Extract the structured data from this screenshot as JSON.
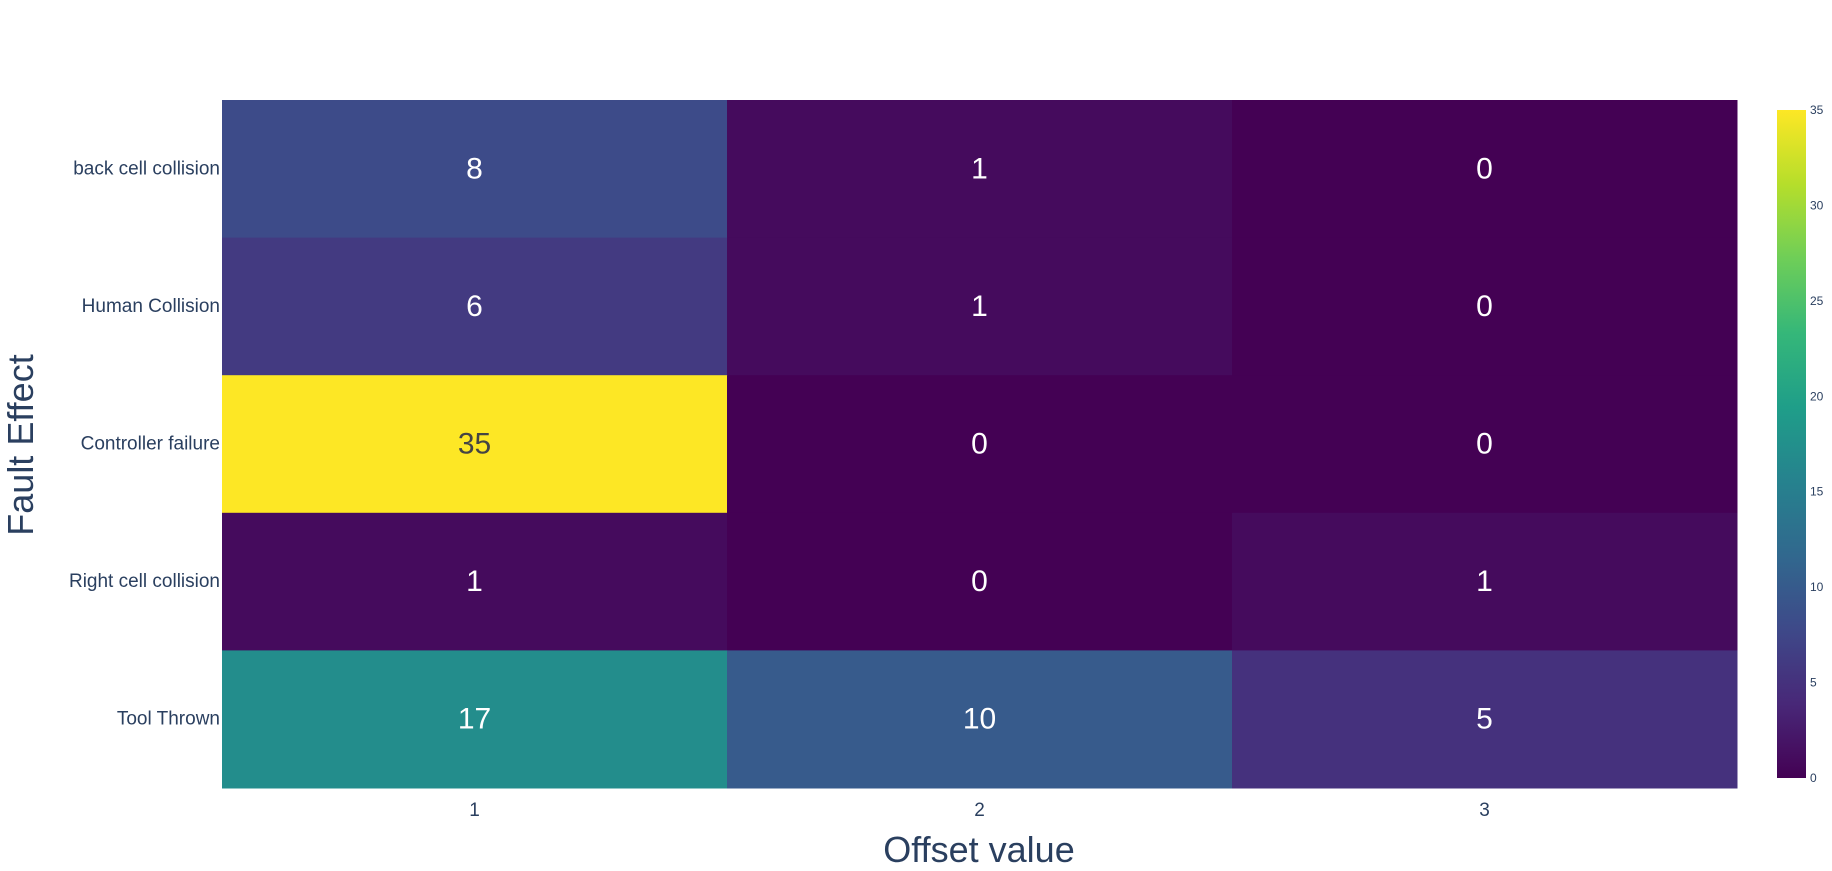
{
  "chart_data": {
    "type": "heatmap",
    "xlabel": "Offset value",
    "ylabel": "Fault Effect",
    "x": [
      "1",
      "2",
      "3"
    ],
    "y": [
      "back cell collision",
      "Human Collision",
      "Controller failure",
      "Right cell collision",
      "Tool Thrown"
    ],
    "z": [
      [
        8,
        1,
        0
      ],
      [
        6,
        1,
        0
      ],
      [
        35,
        0,
        0
      ],
      [
        1,
        0,
        1
      ],
      [
        17,
        10,
        5
      ]
    ],
    "zlim": [
      0,
      35
    ],
    "colorscale": "viridis",
    "colorbar_ticks": [
      "0",
      "5",
      "10",
      "15",
      "20",
      "25",
      "30",
      "35"
    ],
    "grid": false
  }
}
